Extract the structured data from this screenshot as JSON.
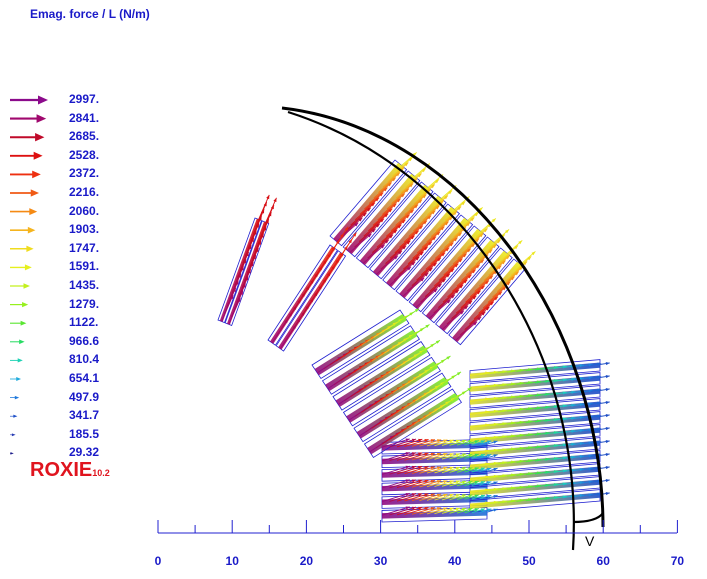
{
  "title": "Emag. force / L (N/m)",
  "legend": {
    "values": [
      "2997.",
      "2841.",
      "2685.",
      "2528.",
      "2372.",
      "2216.",
      "2060.",
      "1903.",
      "1747.",
      "1591.",
      "1435.",
      "1279.",
      "1122.",
      "966.6",
      "810.4",
      "654.1",
      "497.9",
      "341.7",
      "185.5",
      "29.32"
    ],
    "colors": [
      "#8b0a8b",
      "#a0086e",
      "#c00a2a",
      "#dd1010",
      "#ee3010",
      "#f05a14",
      "#f58a14",
      "#f5b41e",
      "#f0dc1e",
      "#e6f01e",
      "#c3f01e",
      "#96f01e",
      "#5ae632",
      "#28dc64",
      "#1ed2b4",
      "#1eaadc",
      "#1e78dc",
      "#1e50c8",
      "#283cb4",
      "#1e1e8c"
    ]
  },
  "logo": {
    "name": "ROXIE",
    "version": "10.2"
  },
  "x_axis": {
    "ticks": [
      "0",
      "10",
      "20",
      "30",
      "40",
      "50",
      "60",
      "70"
    ]
  },
  "marker": "V"
}
